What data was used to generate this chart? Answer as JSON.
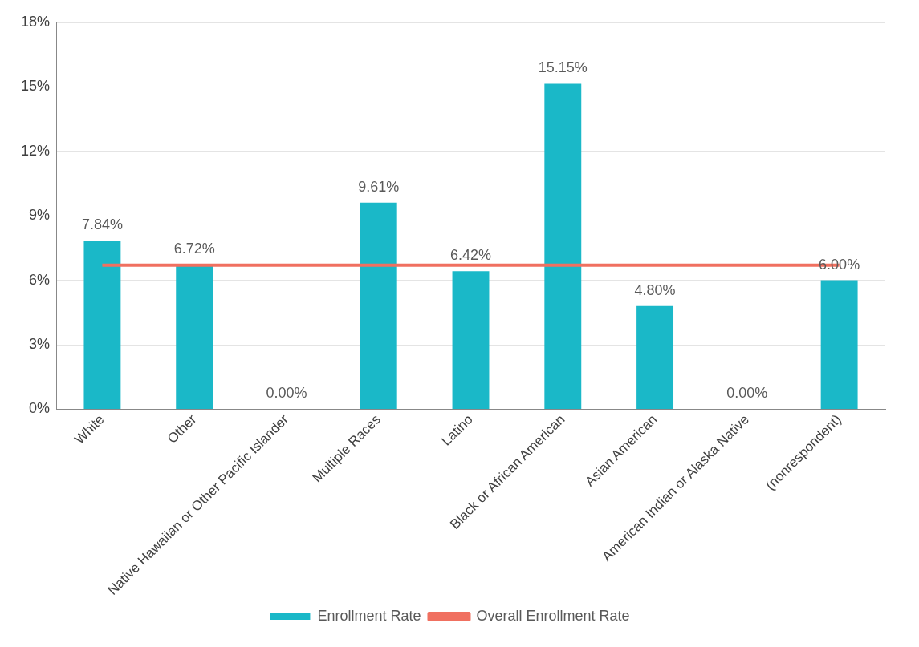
{
  "chart_data": {
    "type": "bar",
    "categories": [
      "White",
      "Other",
      "Native Hawaiian or Other Pacific Islander",
      "Multiple Races",
      "Latino",
      "Black or African American",
      "Asian American",
      "American Indian or Alaska Native",
      "(nonrespondent)"
    ],
    "series": [
      {
        "name": "Enrollment Rate",
        "color": "#1ab8c8",
        "values": [
          7.84,
          6.72,
          0,
          9.61,
          6.42,
          15.15,
          4.8,
          0,
          6.0
        ],
        "value_labels": [
          "7.84%",
          "6.72%",
          "0.00%",
          "9.61%",
          "6.42%",
          "15.15%",
          "4.80%",
          "0.00%",
          "6.00%"
        ]
      },
      {
        "name": "Overall Enrollment Rate",
        "type": "line",
        "color": "#f07060",
        "values": [
          6.7,
          6.7,
          6.7,
          6.7,
          6.7,
          6.7,
          6.7,
          6.7,
          6.7
        ]
      }
    ],
    "ylim": [
      0,
      18
    ],
    "yticks": [
      {
        "value": 0,
        "label": "0%"
      },
      {
        "value": 3,
        "label": "3%"
      },
      {
        "value": 6,
        "label": "6%"
      },
      {
        "value": 9,
        "label": "9%"
      },
      {
        "value": 12,
        "label": "12%"
      },
      {
        "value": 15,
        "label": "15%"
      },
      {
        "value": 18,
        "label": "18%"
      }
    ],
    "grid": "y",
    "legend": "bottom",
    "marker": "none"
  }
}
